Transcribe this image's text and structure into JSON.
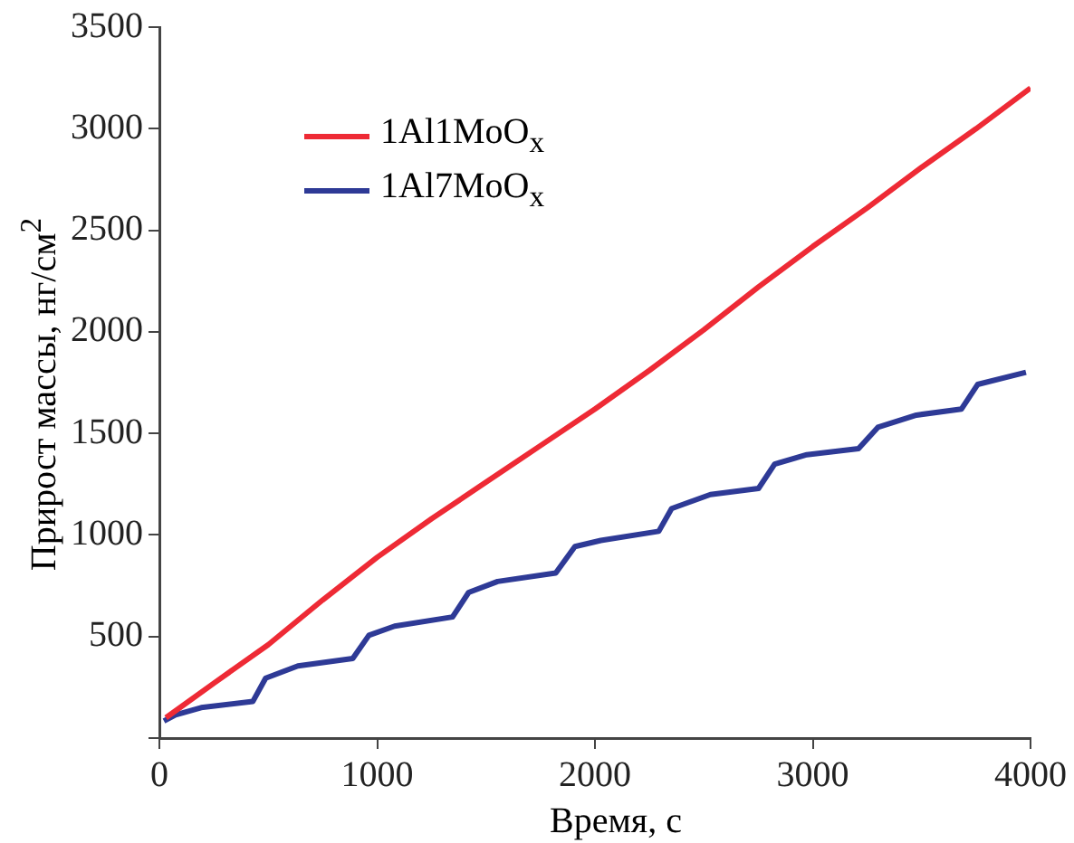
{
  "chart_data": {
    "type": "line",
    "xlabel": "Время, с",
    "ylabel": "Прирост массы, нг/см$^{2}$",
    "xlim": [
      0,
      4000
    ],
    "xticks": [
      0,
      1000,
      2000,
      3000,
      4000
    ],
    "ylim": [
      0,
      3500
    ],
    "yticks": [
      {
        "value": 0,
        "label": null
      },
      500,
      1000,
      1500,
      2000,
      2500,
      3000,
      3500
    ],
    "grid": false,
    "legend": "top left",
    "marker": "none",
    "line_style": "solid",
    "series": [
      {
        "name": "1Al1MoO$_{x}$",
        "color": "#ee2a35",
        "x": [
          30,
          250,
          500,
          750,
          1000,
          1250,
          1500,
          1750,
          2000,
          2250,
          2500,
          2750,
          3000,
          3250,
          3500,
          3750,
          4000
        ],
        "values": [
          100,
          270,
          460,
          680,
          890,
          1080,
          1260,
          1440,
          1620,
          1810,
          2010,
          2220,
          2420,
          2610,
          2810,
          3000,
          3200
        ]
      },
      {
        "name": "1Al7MoO$_{x}$",
        "color": "#2e3a96",
        "x": [
          21,
          74,
          192,
          429,
          488,
          636,
          888,
          962,
          1080,
          1346,
          1420,
          1553,
          1820,
          1908,
          2027,
          2293,
          2352,
          2530,
          2751,
          2825,
          2973,
          3210,
          3299,
          3476,
          3683,
          3757,
          3979
        ],
        "values": [
          84,
          114,
          150,
          180,
          295,
          355,
          392,
          506,
          551,
          596,
          717,
          771,
          813,
          943,
          973,
          1018,
          1130,
          1199,
          1229,
          1349,
          1395,
          1425,
          1530,
          1590,
          1620,
          1741,
          1801
        ]
      }
    ]
  }
}
